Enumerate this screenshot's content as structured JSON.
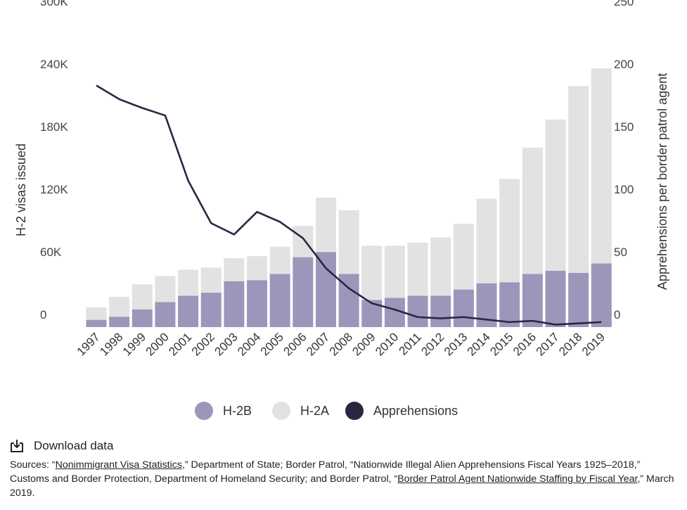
{
  "chart_data": {
    "type": "bar",
    "categories": [
      "1997",
      "1998",
      "1999",
      "2000",
      "2001",
      "2002",
      "2003",
      "2004",
      "2005",
      "2006",
      "2007",
      "2008",
      "2009",
      "2010",
      "2011",
      "2012",
      "2013",
      "2014",
      "2015",
      "2016",
      "2017",
      "2018",
      "2019"
    ],
    "series": [
      {
        "name": "H-2B",
        "axis": "left",
        "color": "#9d96bb",
        "values": [
          7000,
          10000,
          17000,
          24000,
          30000,
          33000,
          44000,
          45000,
          51000,
          67000,
          72000,
          51000,
          26000,
          28000,
          30000,
          30000,
          36000,
          42000,
          43000,
          51000,
          54000,
          52000,
          61000
        ]
      },
      {
        "name": "H-2A",
        "axis": "left",
        "color": "#e2e2e2",
        "values": [
          12000,
          19000,
          24000,
          25000,
          25000,
          24000,
          22000,
          23000,
          26000,
          30000,
          52000,
          61000,
          52000,
          50000,
          51000,
          56000,
          63000,
          81000,
          99000,
          121000,
          145000,
          179000,
          187000
        ]
      },
      {
        "name": "Apprehensions",
        "axis": "right",
        "type": "line",
        "color": "#2b2640",
        "values": [
          193,
          182,
          175,
          169,
          117,
          83,
          74,
          92,
          84,
          71,
          47,
          31,
          19,
          14,
          8,
          7,
          8,
          6,
          4,
          5,
          2,
          3,
          4
        ]
      }
    ],
    "ylim": [
      0,
      300000
    ],
    "y_ticks": [
      "0",
      "60K",
      "120K",
      "180K",
      "240K",
      "300K"
    ],
    "y2lim": [
      0,
      250
    ],
    "y2_ticks": [
      "0",
      "50",
      "100",
      "150",
      "200",
      "250"
    ],
    "ylabel": "H-2 visas issued",
    "y2label": "Apprehensions per border patrol agent",
    "xlabel": "",
    "stacked": true,
    "grid": false,
    "legend": "bottom-center"
  },
  "legend": [
    {
      "label": "H-2B",
      "color": "#9d96bb"
    },
    {
      "label": "H-2A",
      "color": "#e2e2e2"
    },
    {
      "label": "Apprehensions",
      "color": "#2b2640"
    }
  ],
  "download": {
    "label": "Download data",
    "icon": "download-icon"
  },
  "sources": {
    "prefix": "Sources: “",
    "link1": "Nonimmigrant Visa Statistics",
    "mid1": ",” Department of State; Border Patrol, “Nationwide Illegal Alien Apprehensions Fiscal Years 1925–2018,” Customs and Border Protection, Department of Homeland Security; and Border Patrol, “",
    "link2": "Border Patrol Agent Nationwide Staffing by Fiscal Year",
    "suffix": ",” March 2019."
  }
}
